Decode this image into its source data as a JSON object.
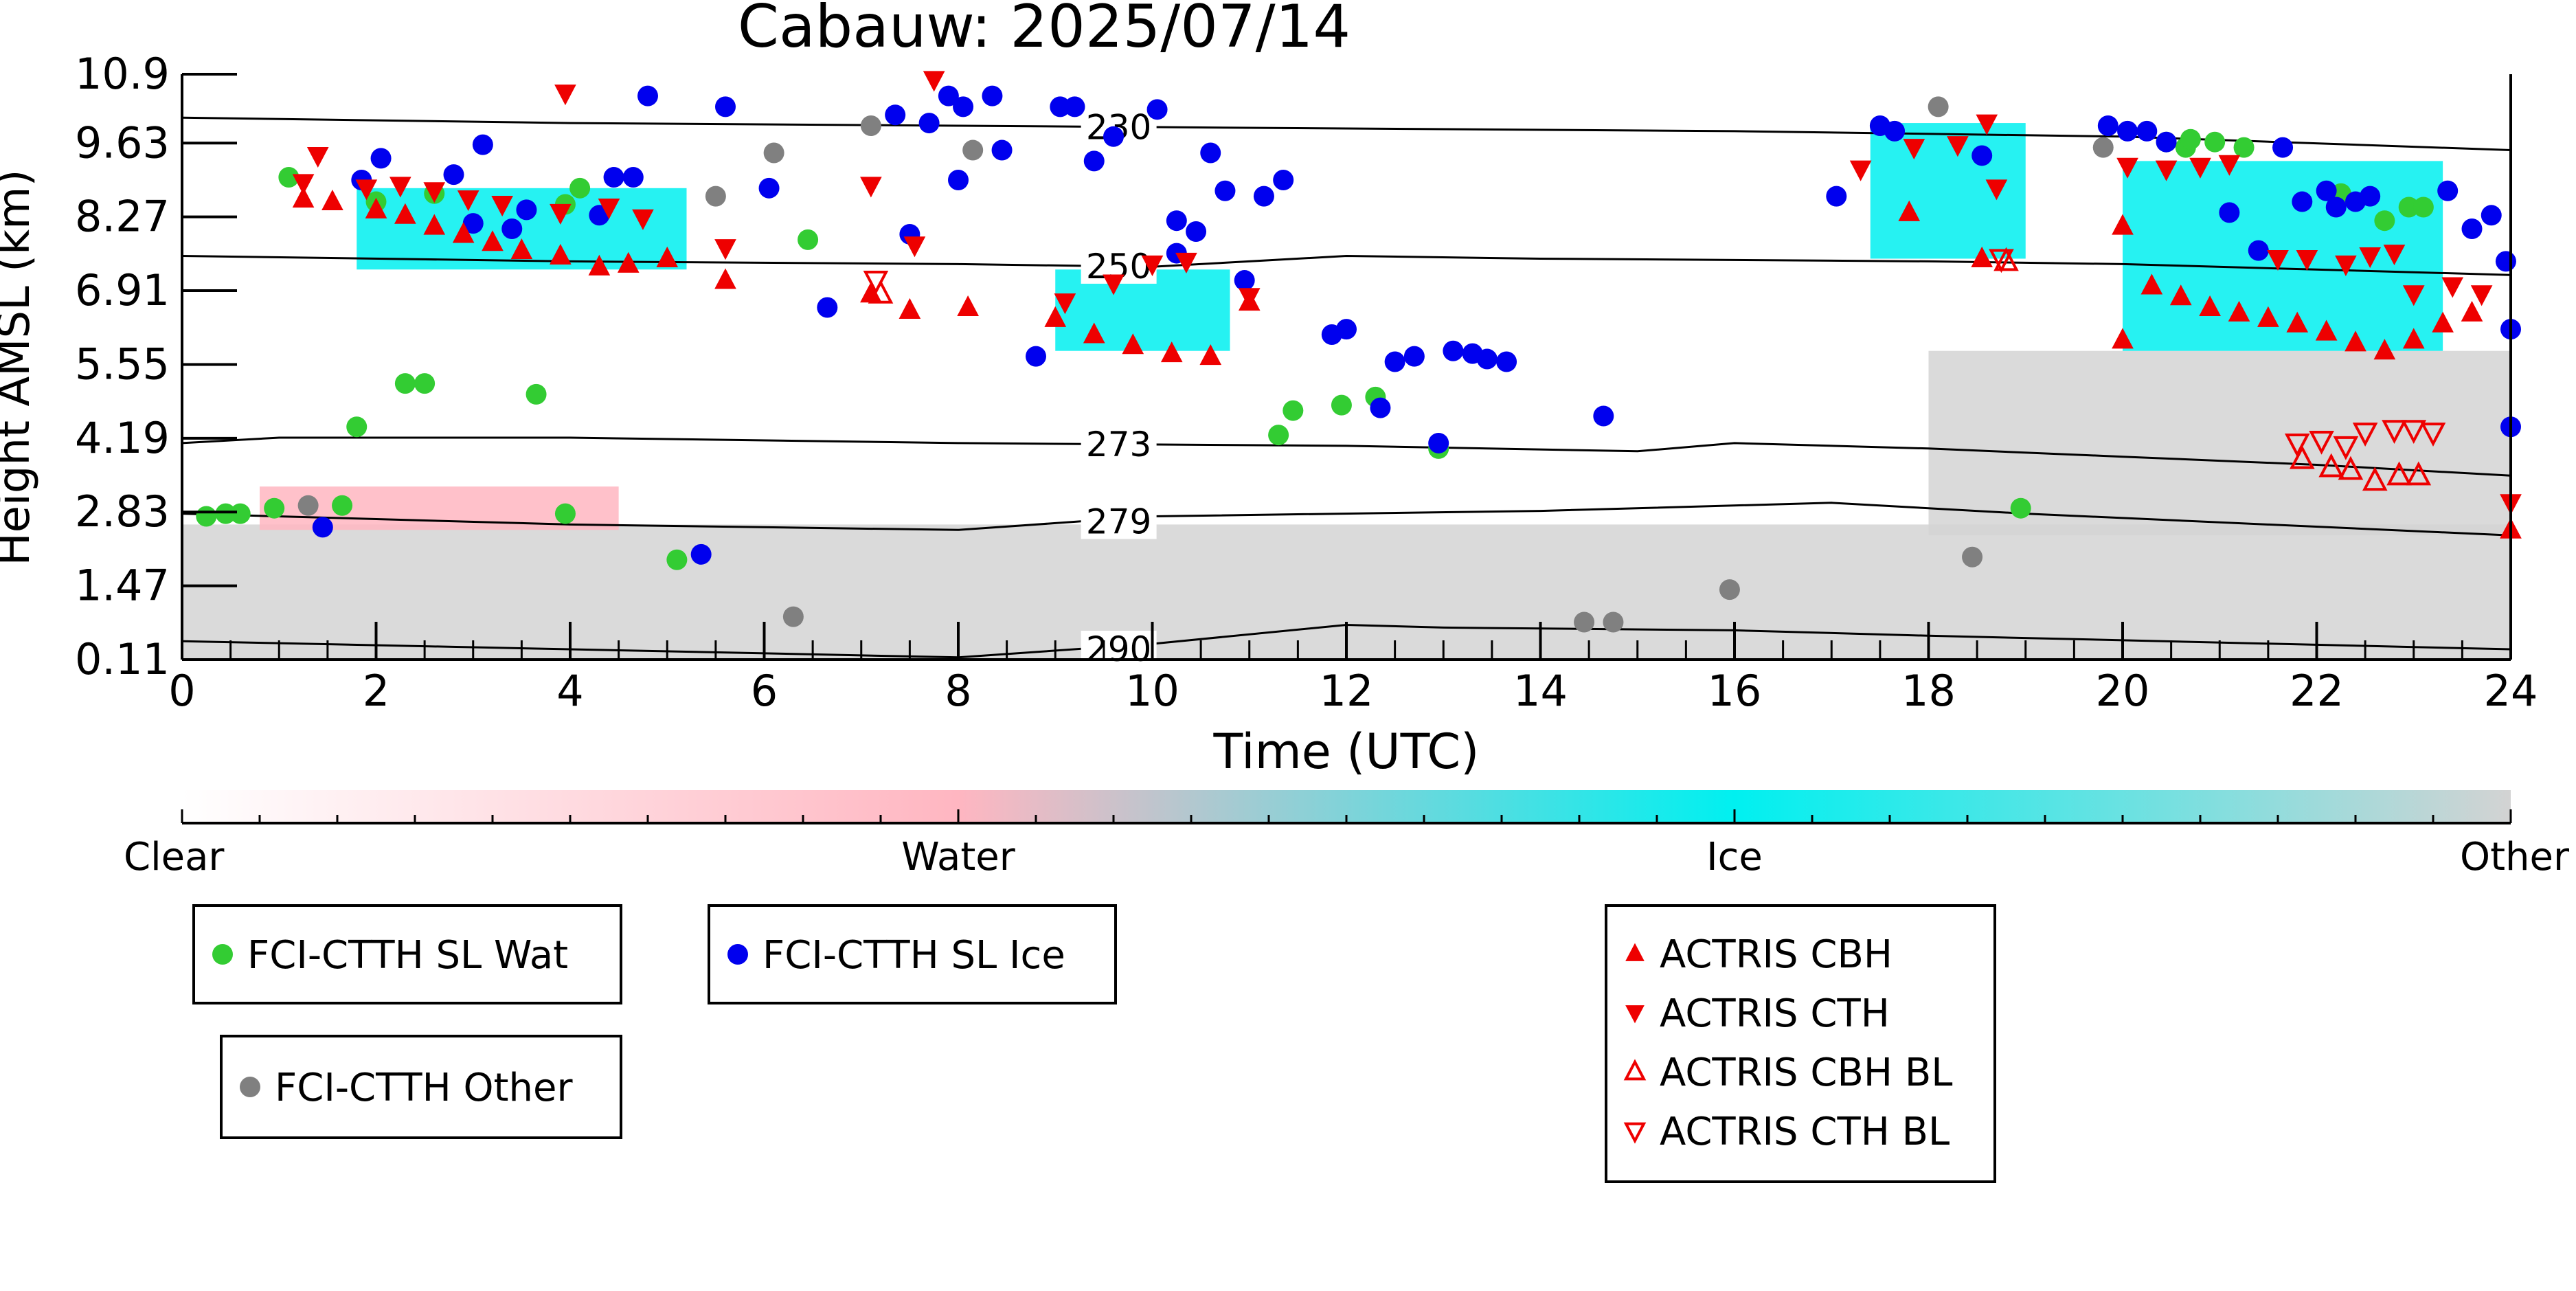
{
  "chart_data": {
    "type": "scatter",
    "title": "Cabauw: 2025/07/14",
    "xlabel": "Time (UTC)",
    "ylabel": "Height AMSL (km)",
    "xlim": [
      0,
      24
    ],
    "ylim": [
      0.11,
      10.9
    ],
    "x_ticks": [
      "0",
      "2",
      "4",
      "6",
      "8",
      "10",
      "12",
      "14",
      "16",
      "18",
      "20",
      "22",
      "24"
    ],
    "y_ticks": [
      "0.11",
      "1.47",
      "2.83",
      "4.19",
      "5.55",
      "6.91",
      "8.27",
      "9.63",
      "10.9"
    ],
    "isotherms": [
      {
        "label": "230",
        "label_x": 9.3,
        "points": [
          [
            0,
            10.1
          ],
          [
            4,
            10.0
          ],
          [
            8,
            9.95
          ],
          [
            12,
            9.9
          ],
          [
            16,
            9.85
          ],
          [
            20,
            9.75
          ],
          [
            24,
            9.5
          ]
        ]
      },
      {
        "label": "250",
        "label_x": 9.3,
        "points": [
          [
            0,
            7.55
          ],
          [
            4,
            7.45
          ],
          [
            8,
            7.4
          ],
          [
            10,
            7.35
          ],
          [
            12,
            7.55
          ],
          [
            14,
            7.5
          ],
          [
            18,
            7.45
          ],
          [
            20,
            7.4
          ],
          [
            24,
            7.2
          ]
        ]
      },
      {
        "label": "273",
        "label_x": 9.3,
        "points": [
          [
            0,
            4.1
          ],
          [
            1,
            4.2
          ],
          [
            4,
            4.2
          ],
          [
            8,
            4.1
          ],
          [
            12,
            4.05
          ],
          [
            15,
            3.95
          ],
          [
            16,
            4.1
          ],
          [
            18,
            4.0
          ],
          [
            20,
            3.85
          ],
          [
            22,
            3.7
          ],
          [
            24,
            3.5
          ]
        ]
      },
      {
        "label": "279",
        "label_x": 9.3,
        "points": [
          [
            0,
            2.8
          ],
          [
            4,
            2.6
          ],
          [
            8,
            2.5
          ],
          [
            10,
            2.75
          ],
          [
            14,
            2.85
          ],
          [
            17,
            3.0
          ],
          [
            19,
            2.8
          ],
          [
            24,
            2.4
          ]
        ]
      },
      {
        "label": "290",
        "label_x": 9.3,
        "points": [
          [
            0,
            0.45
          ],
          [
            4,
            0.3
          ],
          [
            8,
            0.15
          ],
          [
            10,
            0.4
          ],
          [
            12,
            0.75
          ],
          [
            13,
            0.7
          ],
          [
            16,
            0.65
          ],
          [
            18,
            0.55
          ],
          [
            24,
            0.3
          ]
        ]
      }
    ],
    "series": [
      {
        "name": "FCI-CTTH SL Wat",
        "marker": "circle",
        "color": "#33cc33",
        "points": [
          [
            0.25,
            2.75
          ],
          [
            0.45,
            2.8
          ],
          [
            0.6,
            2.8
          ],
          [
            0.95,
            2.9
          ],
          [
            1.1,
            9.0
          ],
          [
            1.65,
            2.95
          ],
          [
            1.8,
            4.4
          ],
          [
            2.0,
            8.55
          ],
          [
            2.3,
            5.2
          ],
          [
            2.5,
            5.2
          ],
          [
            2.6,
            8.7
          ],
          [
            3.65,
            5.0
          ],
          [
            3.95,
            8.5
          ],
          [
            3.95,
            2.8
          ],
          [
            4.1,
            8.8
          ],
          [
            5.1,
            1.95
          ],
          [
            6.45,
            7.85
          ],
          [
            11.3,
            4.25
          ],
          [
            11.45,
            4.7
          ],
          [
            11.95,
            4.8
          ],
          [
            12.3,
            4.95
          ],
          [
            12.95,
            4.0
          ],
          [
            18.95,
            2.9
          ],
          [
            20.45,
            9.65
          ],
          [
            20.65,
            9.55
          ],
          [
            20.7,
            9.7
          ],
          [
            20.95,
            9.65
          ],
          [
            21.25,
            9.55
          ],
          [
            22.25,
            8.7
          ],
          [
            22.7,
            8.2
          ],
          [
            22.95,
            8.45
          ],
          [
            23.1,
            8.45
          ]
        ]
      },
      {
        "name": "FCI-CTTH SL Ice",
        "marker": "circle",
        "color": "#0000ee",
        "points": [
          [
            1.45,
            2.55
          ],
          [
            1.85,
            8.95
          ],
          [
            2.05,
            9.35
          ],
          [
            2.8,
            9.05
          ],
          [
            3.0,
            8.15
          ],
          [
            3.1,
            9.6
          ],
          [
            3.4,
            8.05
          ],
          [
            3.55,
            8.4
          ],
          [
            4.3,
            8.3
          ],
          [
            4.45,
            9.0
          ],
          [
            4.65,
            9.0
          ],
          [
            4.8,
            10.5
          ],
          [
            5.35,
            2.05
          ],
          [
            5.6,
            10.3
          ],
          [
            6.05,
            8.8
          ],
          [
            6.65,
            6.6
          ],
          [
            7.5,
            7.95
          ],
          [
            7.35,
            10.15
          ],
          [
            7.7,
            10.0
          ],
          [
            7.9,
            10.5
          ],
          [
            8.05,
            10.3
          ],
          [
            8.0,
            8.95
          ],
          [
            8.35,
            10.5
          ],
          [
            8.45,
            9.5
          ],
          [
            8.8,
            5.7
          ],
          [
            9.05,
            10.3
          ],
          [
            9.2,
            10.3
          ],
          [
            9.4,
            9.3
          ],
          [
            9.6,
            9.75
          ],
          [
            10.05,
            10.25
          ],
          [
            10.25,
            8.2
          ],
          [
            10.25,
            7.6
          ],
          [
            10.45,
            8.0
          ],
          [
            10.6,
            9.45
          ],
          [
            10.75,
            8.75
          ],
          [
            10.95,
            7.1
          ],
          [
            11.15,
            8.65
          ],
          [
            11.35,
            8.95
          ],
          [
            11.85,
            6.1
          ],
          [
            12.0,
            6.2
          ],
          [
            12.35,
            4.75
          ],
          [
            12.5,
            5.6
          ],
          [
            12.7,
            5.7
          ],
          [
            12.95,
            4.1
          ],
          [
            13.1,
            5.8
          ],
          [
            13.3,
            5.75
          ],
          [
            13.45,
            5.65
          ],
          [
            13.65,
            5.6
          ],
          [
            14.65,
            4.6
          ],
          [
            17.05,
            8.65
          ],
          [
            17.5,
            9.95
          ],
          [
            17.65,
            9.85
          ],
          [
            18.55,
            9.4
          ],
          [
            19.85,
            9.95
          ],
          [
            20.05,
            9.85
          ],
          [
            20.25,
            9.85
          ],
          [
            20.45,
            9.65
          ],
          [
            21.1,
            8.35
          ],
          [
            21.4,
            7.65
          ],
          [
            21.65,
            9.55
          ],
          [
            21.85,
            8.55
          ],
          [
            22.1,
            8.75
          ],
          [
            22.2,
            8.45
          ],
          [
            22.4,
            8.55
          ],
          [
            22.55,
            8.65
          ],
          [
            23.35,
            8.75
          ],
          [
            23.6,
            8.05
          ],
          [
            23.8,
            8.3
          ],
          [
            23.95,
            7.45
          ],
          [
            24.0,
            6.2
          ],
          [
            24.0,
            4.4
          ]
        ]
      },
      {
        "name": "FCI-CTTH Other",
        "marker": "circle",
        "color": "#808080",
        "points": [
          [
            1.3,
            2.95
          ],
          [
            5.5,
            8.65
          ],
          [
            6.1,
            9.45
          ],
          [
            6.3,
            0.9
          ],
          [
            7.1,
            9.95
          ],
          [
            8.15,
            9.5
          ],
          [
            14.45,
            0.8
          ],
          [
            14.75,
            0.8
          ],
          [
            15.95,
            1.4
          ],
          [
            18.1,
            10.3
          ],
          [
            18.45,
            2.0
          ],
          [
            19.8,
            9.55
          ]
        ]
      },
      {
        "name": "ACTRIS CBH",
        "marker": "triangle-up",
        "color": "#ee0000",
        "points": [
          [
            1.25,
            8.6
          ],
          [
            1.55,
            8.55
          ],
          [
            2.0,
            8.4
          ],
          [
            2.3,
            8.3
          ],
          [
            2.6,
            8.1
          ],
          [
            2.9,
            7.95
          ],
          [
            3.2,
            7.8
          ],
          [
            3.5,
            7.65
          ],
          [
            3.9,
            7.55
          ],
          [
            4.3,
            7.35
          ],
          [
            4.6,
            7.4
          ],
          [
            5.0,
            7.5
          ],
          [
            5.6,
            7.1
          ],
          [
            7.1,
            6.85
          ],
          [
            7.5,
            6.55
          ],
          [
            8.1,
            6.6
          ],
          [
            9.0,
            6.4
          ],
          [
            9.4,
            6.1
          ],
          [
            9.8,
            5.9
          ],
          [
            10.2,
            5.75
          ],
          [
            10.6,
            5.7
          ],
          [
            11.0,
            6.7
          ],
          [
            17.8,
            8.35
          ],
          [
            18.55,
            7.5
          ],
          [
            20.0,
            8.1
          ],
          [
            20.3,
            7.0
          ],
          [
            20.6,
            6.8
          ],
          [
            20.9,
            6.6
          ],
          [
            21.2,
            6.5
          ],
          [
            21.5,
            6.4
          ],
          [
            21.8,
            6.3
          ],
          [
            22.1,
            6.15
          ],
          [
            22.4,
            5.95
          ],
          [
            22.7,
            5.8
          ],
          [
            23.0,
            6.0
          ],
          [
            23.3,
            6.3
          ],
          [
            23.6,
            6.5
          ],
          [
            24.0,
            2.5
          ],
          [
            20.0,
            6.0
          ]
        ]
      },
      {
        "name": "ACTRIS CTH",
        "marker": "triangle-down",
        "color": "#ee0000",
        "points": [
          [
            1.4,
            9.4
          ],
          [
            1.25,
            8.9
          ],
          [
            1.9,
            8.8
          ],
          [
            2.25,
            8.85
          ],
          [
            2.6,
            8.75
          ],
          [
            2.95,
            8.6
          ],
          [
            3.3,
            8.5
          ],
          [
            3.9,
            8.35
          ],
          [
            4.4,
            8.45
          ],
          [
            4.75,
            8.25
          ],
          [
            5.6,
            7.7
          ],
          [
            7.1,
            8.85
          ],
          [
            7.55,
            7.75
          ],
          [
            7.75,
            10.8
          ],
          [
            3.95,
            10.55
          ],
          [
            9.1,
            6.7
          ],
          [
            9.6,
            7.05
          ],
          [
            10.0,
            7.4
          ],
          [
            10.35,
            7.45
          ],
          [
            11.0,
            6.8
          ],
          [
            17.3,
            9.15
          ],
          [
            17.85,
            9.55
          ],
          [
            18.3,
            9.6
          ],
          [
            18.6,
            10.0
          ],
          [
            18.7,
            8.8
          ],
          [
            20.05,
            9.2
          ],
          [
            20.45,
            9.15
          ],
          [
            20.8,
            9.2
          ],
          [
            21.1,
            9.25
          ],
          [
            21.6,
            7.5
          ],
          [
            21.9,
            7.5
          ],
          [
            22.3,
            7.4
          ],
          [
            22.55,
            7.55
          ],
          [
            22.8,
            7.6
          ],
          [
            23.0,
            6.85
          ],
          [
            23.4,
            7.0
          ],
          [
            23.7,
            6.85
          ],
          [
            24.0,
            3.0
          ]
        ]
      },
      {
        "name": "ACTRIS CBH BL",
        "marker": "triangle-up-open",
        "color": "#ee0000",
        "points": [
          [
            7.2,
            6.85
          ],
          [
            18.8,
            7.45
          ],
          [
            21.85,
            3.8
          ],
          [
            22.15,
            3.65
          ],
          [
            22.35,
            3.6
          ],
          [
            22.6,
            3.4
          ],
          [
            22.85,
            3.5
          ],
          [
            23.05,
            3.5
          ]
        ]
      },
      {
        "name": "ACTRIS CTH BL",
        "marker": "triangle-down-open",
        "color": "#ee0000",
        "points": [
          [
            7.15,
            7.1
          ],
          [
            18.75,
            7.5
          ],
          [
            21.8,
            4.1
          ],
          [
            22.05,
            4.15
          ],
          [
            22.3,
            4.05
          ],
          [
            22.5,
            4.3
          ],
          [
            22.8,
            4.35
          ],
          [
            23.0,
            4.35
          ],
          [
            23.2,
            4.3
          ]
        ]
      }
    ],
    "background_layers": [
      {
        "class": "Other",
        "color": "#d3d3d3",
        "x0": 0,
        "x1": 24,
        "y0": 0.11,
        "y1": 2.6
      },
      {
        "class": "Other",
        "color": "#d3d3d3",
        "x0": 18,
        "x1": 24,
        "y0": 2.4,
        "y1": 5.8
      },
      {
        "class": "Water",
        "color": "#ffb6c1",
        "x0": 0.8,
        "x1": 4.5,
        "y0": 2.5,
        "y1": 3.3
      },
      {
        "class": "Ice",
        "color": "#00f0f0",
        "x0": 1.8,
        "x1": 5.2,
        "y0": 7.3,
        "y1": 8.8
      },
      {
        "class": "Ice",
        "color": "#00f0f0",
        "x0": 9.0,
        "x1": 10.8,
        "y0": 5.8,
        "y1": 7.3
      },
      {
        "class": "Ice",
        "color": "#00f0f0",
        "x0": 17.4,
        "x1": 19.0,
        "y0": 7.5,
        "y1": 10.0
      },
      {
        "class": "Ice",
        "color": "#00f0f0",
        "x0": 20.0,
        "x1": 23.3,
        "y0": 5.8,
        "y1": 9.3
      }
    ],
    "colorbar": {
      "labels": [
        "Clear",
        "Water",
        "Ice",
        "Other"
      ],
      "colors": [
        "#ffffff",
        "#ffb6c1",
        "#00f0f0",
        "#d3d3d3"
      ]
    },
    "grid": false,
    "legend_placement": "bottom"
  }
}
